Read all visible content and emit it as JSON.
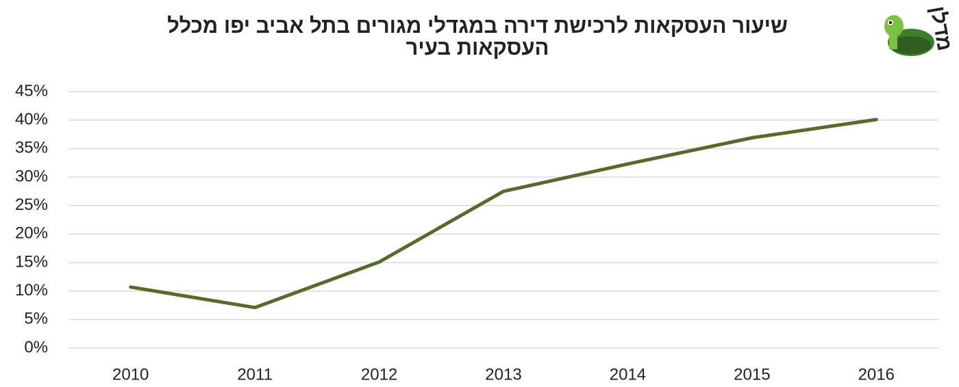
{
  "chart_data": {
    "type": "line",
    "title": [
      "שיעור העסקאות לרכישת דירה במגדלי מגורים בתל אביב יפו מכלל",
      "העסקאות בעיר"
    ],
    "logo": "מדלן",
    "categories": [
      "2010",
      "2011",
      "2012",
      "2013",
      "2014",
      "2015",
      "2016"
    ],
    "values": [
      10.7,
      7.1,
      15.1,
      27.5,
      32.3,
      36.9,
      40.1
    ],
    "color": "#566b2b",
    "ylim": [
      0,
      45
    ],
    "yticks": [
      {
        "value": 0,
        "label": "0%"
      },
      {
        "value": 5,
        "label": "5%"
      },
      {
        "value": 10,
        "label": "10%"
      },
      {
        "value": 15,
        "label": "15%"
      },
      {
        "value": 20,
        "label": "20%"
      },
      {
        "value": 25,
        "label": "25%"
      },
      {
        "value": 30,
        "label": "30%"
      },
      {
        "value": 35,
        "label": "35%"
      },
      {
        "value": 40,
        "label": "40%"
      },
      {
        "value": 45,
        "label": "45%"
      }
    ],
    "grid": true
  }
}
